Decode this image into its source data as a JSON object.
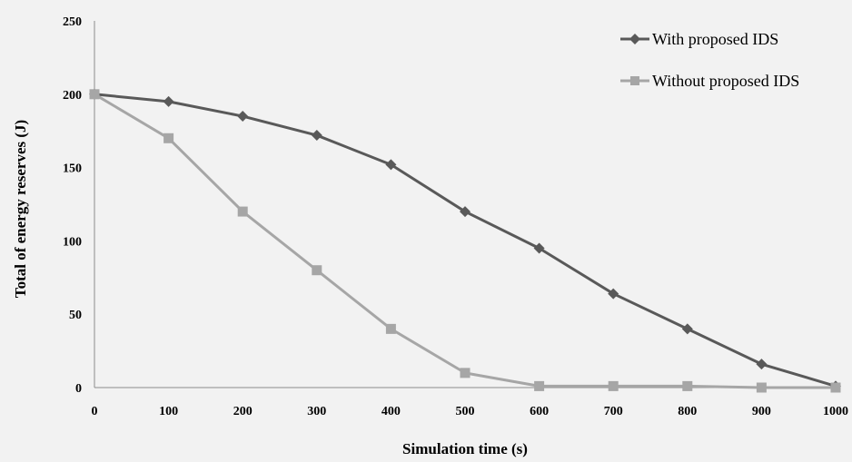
{
  "chart_data": {
    "type": "line",
    "xlabel": "Simulation time (s)",
    "ylabel": "Total of energy reserves (J)",
    "x": [
      0,
      100,
      200,
      300,
      400,
      500,
      600,
      700,
      800,
      900,
      1000
    ],
    "xlim": [
      0,
      1000
    ],
    "ylim": [
      0,
      250
    ],
    "x_ticks": [
      "0",
      "100",
      "200",
      "300",
      "400",
      "500",
      "600",
      "700",
      "800",
      "900",
      "1000"
    ],
    "y_ticks": [
      "0",
      "50",
      "100",
      "150",
      "200",
      "250"
    ],
    "grid": false,
    "legend_position": "top-right",
    "series": [
      {
        "name": "With proposed IDS",
        "marker": "diamond",
        "color": "#595959",
        "values": [
          200,
          195,
          185,
          172,
          152,
          120,
          95,
          64,
          40,
          16,
          1
        ]
      },
      {
        "name": "Without proposed IDS",
        "marker": "square",
        "color": "#a6a6a6",
        "values": [
          200,
          170,
          120,
          80,
          40,
          10,
          1,
          1,
          1,
          0,
          0
        ]
      }
    ]
  }
}
